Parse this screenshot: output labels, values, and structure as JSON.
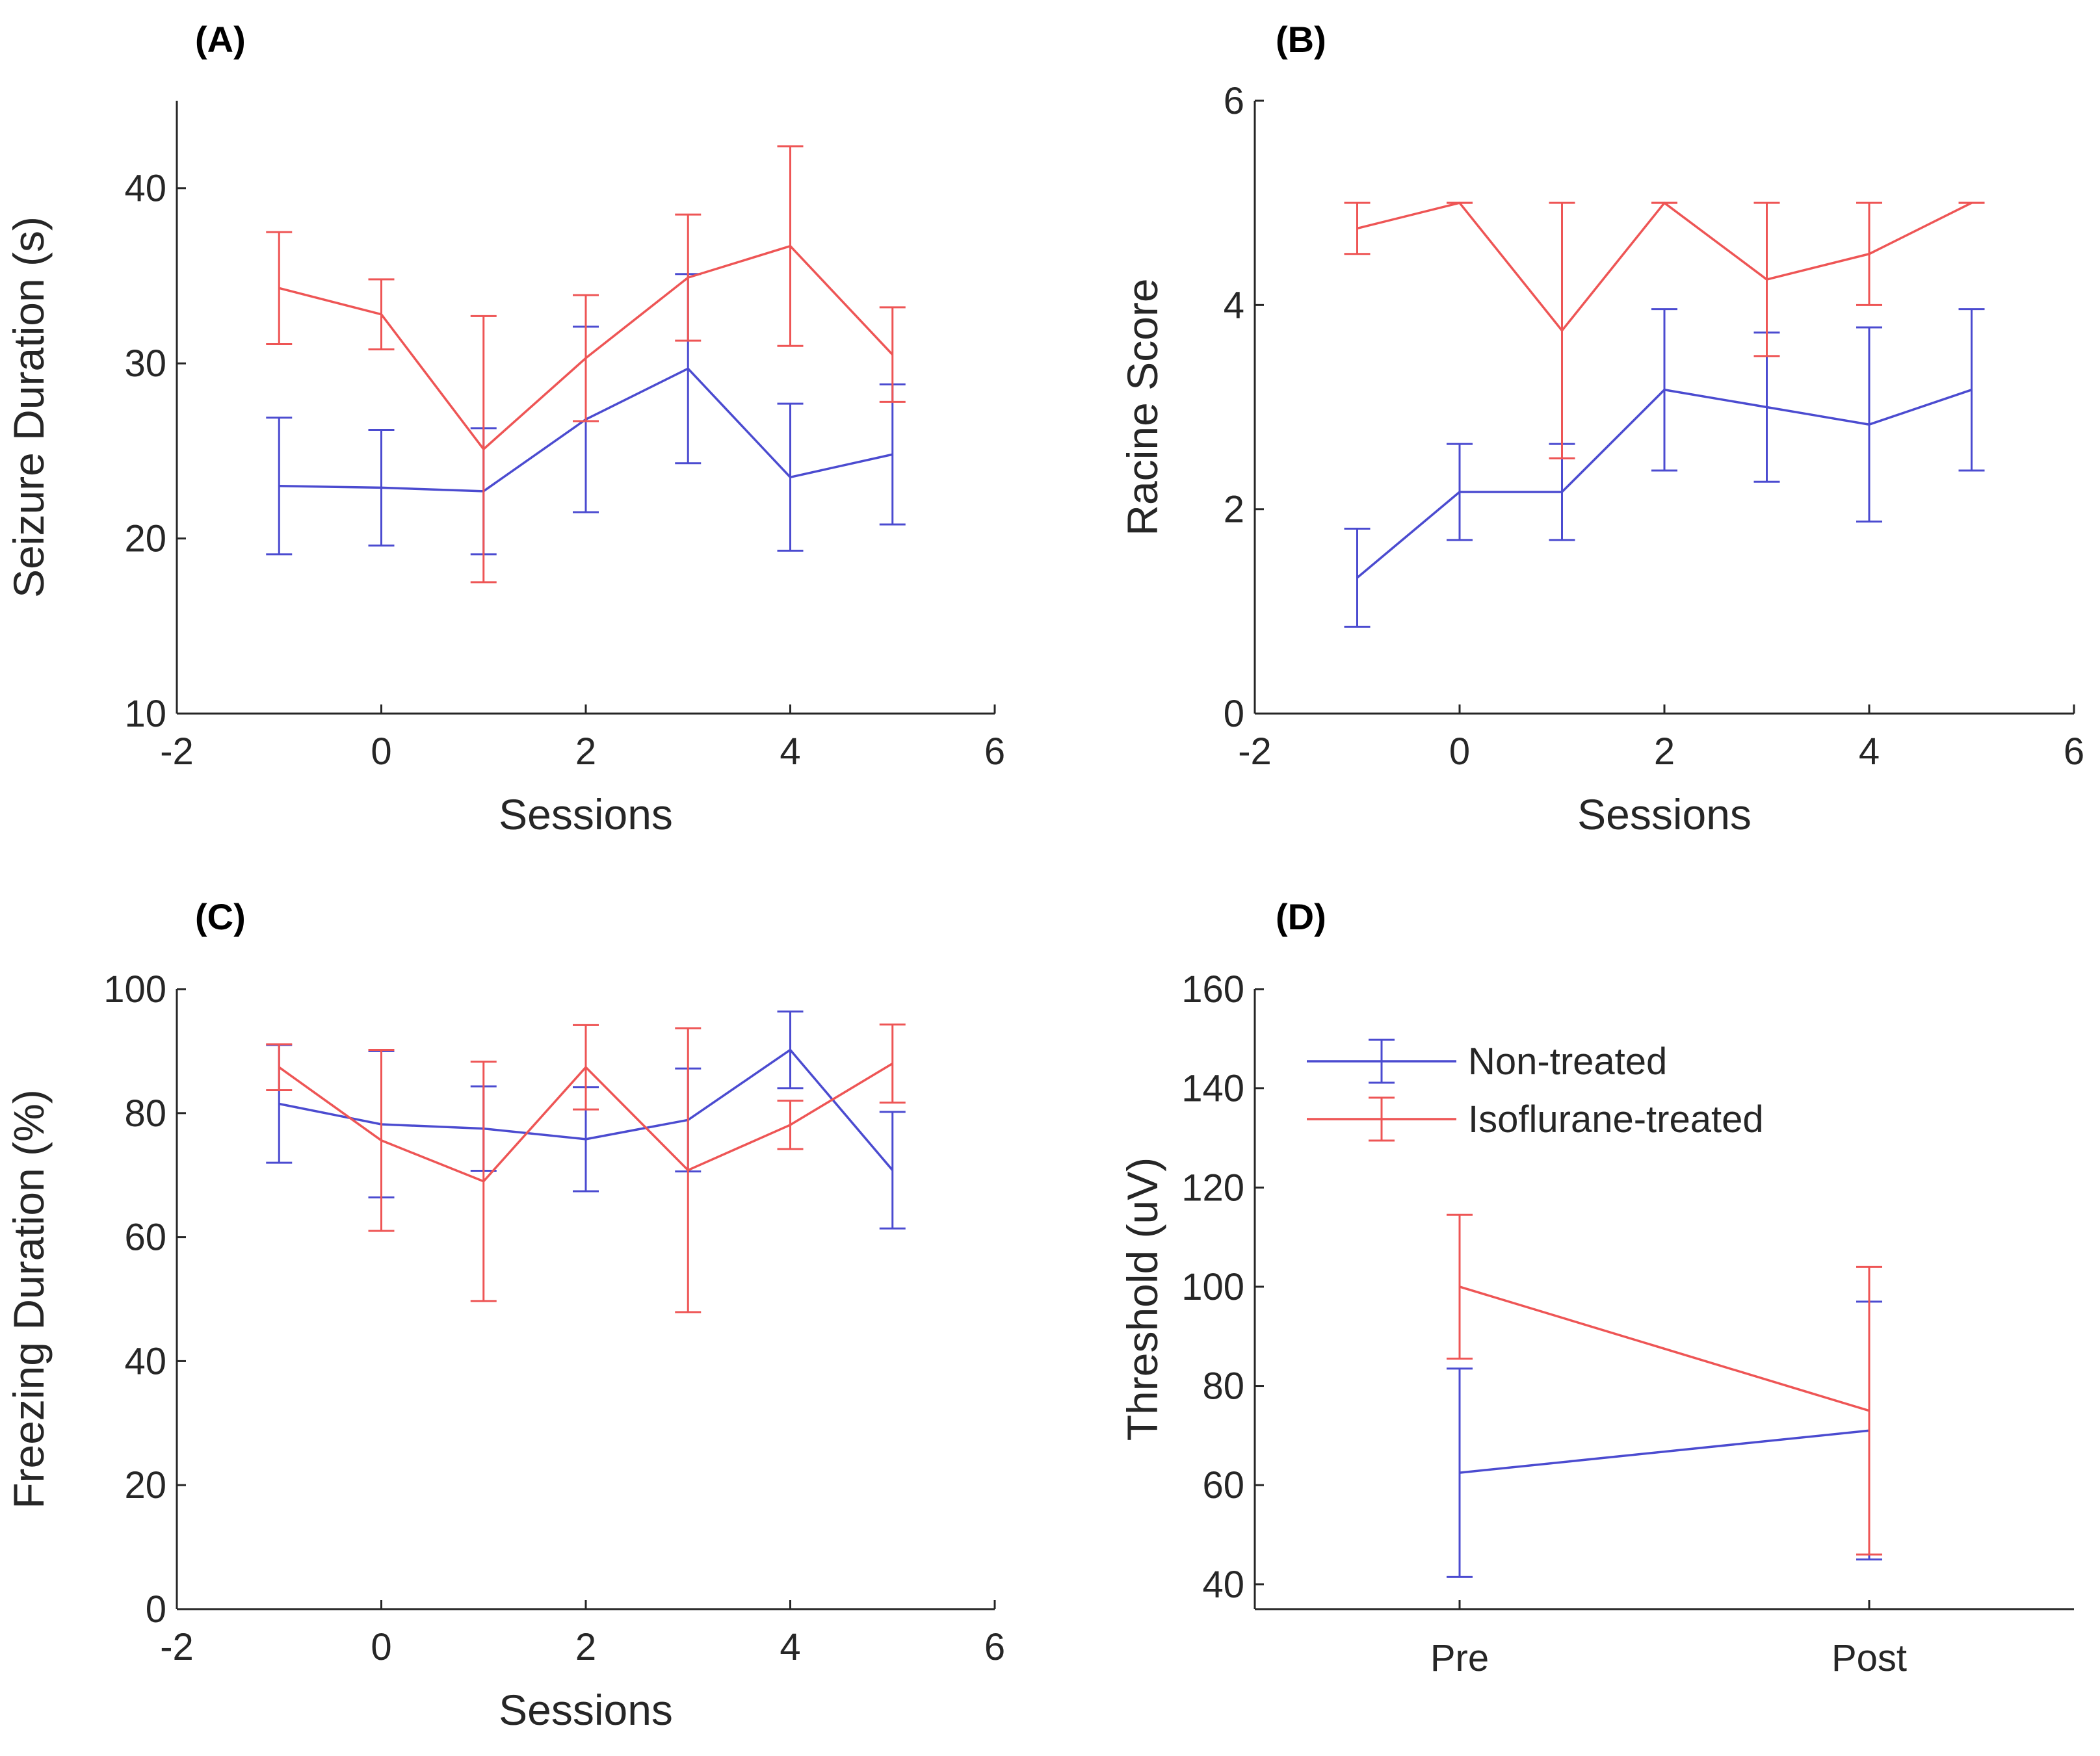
{
  "colors": {
    "non_treated": "#4b4bd0",
    "isoflurane_treated": "#ee5555",
    "axis": "#262626"
  },
  "legend": {
    "items": [
      "Non-treated",
      "Isoflurane-treated"
    ]
  },
  "chart_data": [
    {
      "id": "A",
      "panel_label": "(A)",
      "type": "line",
      "xlabel": "Sessions",
      "ylabel": "Seizure Duration (s)",
      "xlim": [
        -2,
        6
      ],
      "ylim": [
        10,
        45
      ],
      "xticks": [
        "-2",
        "0",
        "2",
        "4",
        "6"
      ],
      "yticks": [
        "10",
        "20",
        "30",
        "40"
      ],
      "x": [
        -1,
        0,
        1,
        2,
        3,
        4,
        5
      ],
      "series": [
        {
          "name": "Non-treated",
          "values": [
            23.0,
            22.9,
            22.7,
            26.8,
            29.7,
            23.5,
            24.8
          ],
          "errors": [
            3.9,
            3.3,
            3.6,
            5.3,
            5.4,
            4.2,
            4.0
          ]
        },
        {
          "name": "Isoflurane-treated",
          "values": [
            34.3,
            32.8,
            25.1,
            30.3,
            34.9,
            36.7,
            30.5
          ],
          "errors": [
            3.2,
            2.0,
            7.6,
            3.6,
            3.6,
            5.7,
            2.7
          ]
        }
      ]
    },
    {
      "id": "B",
      "panel_label": "(B)",
      "type": "line",
      "xlabel": "Sessions",
      "ylabel": "Racine Score",
      "xlim": [
        -2,
        6
      ],
      "ylim": [
        0,
        6
      ],
      "xticks": [
        "-2",
        "0",
        "2",
        "4",
        "6"
      ],
      "yticks": [
        "0",
        "2",
        "4",
        "6"
      ],
      "x": [
        -1,
        0,
        1,
        2,
        3,
        4,
        5
      ],
      "series": [
        {
          "name": "Non-treated",
          "values": [
            1.33,
            2.17,
            2.17,
            3.17,
            3.0,
            2.83,
            3.17
          ],
          "errors": [
            0.48,
            0.47,
            0.47,
            0.79,
            0.73,
            0.95,
            0.79
          ]
        },
        {
          "name": "Isoflurane-treated",
          "values": [
            4.75,
            5.0,
            3.75,
            5.0,
            4.25,
            4.5,
            5.0
          ],
          "errors": [
            0.25,
            0.0,
            1.25,
            0.0,
            0.75,
            0.5,
            0.0
          ]
        }
      ]
    },
    {
      "id": "C",
      "panel_label": "(C)",
      "type": "line",
      "xlabel": "Sessions",
      "ylabel": "Freezing Duration (%)",
      "xlim": [
        -2,
        6
      ],
      "ylim": [
        0,
        100
      ],
      "xticks": [
        "-2",
        "0",
        "2",
        "4",
        "6"
      ],
      "yticks": [
        "0",
        "20",
        "40",
        "60",
        "80",
        "100"
      ],
      "x": [
        -1,
        0,
        1,
        2,
        3,
        4,
        5
      ],
      "series": [
        {
          "name": "Non-treated",
          "values": [
            81.5,
            78.2,
            77.5,
            75.8,
            78.9,
            90.2,
            70.8
          ],
          "errors": [
            9.5,
            11.8,
            6.8,
            8.4,
            8.3,
            6.2,
            9.4
          ]
        },
        {
          "name": "Isoflurane-treated",
          "values": [
            87.4,
            75.6,
            69.0,
            87.4,
            70.8,
            78.1,
            88.0
          ],
          "errors": [
            3.7,
            14.6,
            19.3,
            6.8,
            22.9,
            3.9,
            6.3
          ]
        }
      ]
    },
    {
      "id": "D",
      "panel_label": "(D)",
      "type": "line",
      "xlabel": "",
      "ylabel": "Threshold (uV)",
      "xlim": [
        0.5,
        2.5
      ],
      "ylim": [
        35,
        160
      ],
      "categories": [
        "Pre",
        "Post"
      ],
      "yticks": [
        "40",
        "60",
        "80",
        "100",
        "120",
        "140",
        "160"
      ],
      "x": [
        1,
        2
      ],
      "series": [
        {
          "name": "Non-treated",
          "values": [
            62.5,
            71.0
          ],
          "errors": [
            21.0,
            26.0
          ]
        },
        {
          "name": "Isoflurane-treated",
          "values": [
            100.0,
            75.0
          ],
          "errors": [
            14.5,
            29.0
          ]
        }
      ]
    }
  ]
}
